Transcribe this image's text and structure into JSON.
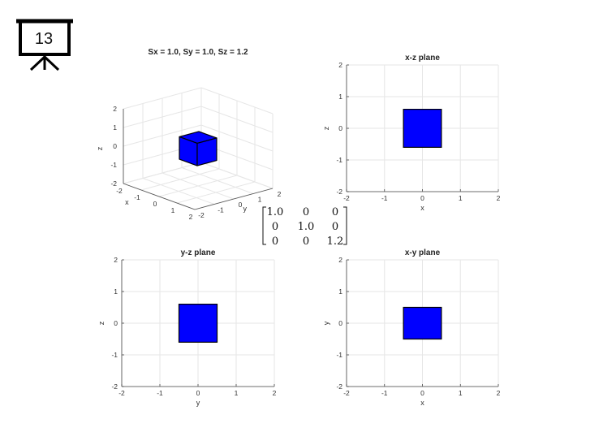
{
  "slide": {
    "number": "13"
  },
  "colors": {
    "cube_fill": "#0000ff",
    "cube_edge": "#000000",
    "highlight": "#cc0000",
    "grid": "#e6e6e6"
  },
  "scale_matrix": {
    "rows": [
      [
        "1.0",
        "0",
        "0"
      ],
      [
        "0",
        "1.0",
        "0"
      ],
      [
        "0",
        "0",
        "1.2"
      ]
    ],
    "highlight_cell": [
      2,
      2
    ]
  },
  "chart_data": [
    {
      "type": "3d-surface",
      "title": "Sx = 1.0, Sy = 1.0, Sz = 1.2",
      "xlabel": "x",
      "ylabel": "y",
      "zlabel": "z",
      "xlim": [
        -2,
        2
      ],
      "ylim": [
        -2,
        2
      ],
      "zlim": [
        -2,
        2
      ],
      "xticks": [
        "-2",
        "-1",
        "0",
        "1",
        "2"
      ],
      "yticks": [
        "-2",
        "-1",
        "0",
        "1",
        "2"
      ],
      "zticks": [
        "-2",
        "-1",
        "0",
        "1",
        "2"
      ],
      "cube": {
        "x": [
          -0.5,
          0.5
        ],
        "y": [
          -0.5,
          0.5
        ],
        "z": [
          -0.6,
          0.6
        ]
      }
    },
    {
      "type": "rect",
      "title": "x-z plane",
      "xlabel": "x",
      "ylabel": "z",
      "xlim": [
        -2,
        2
      ],
      "ylim": [
        -2,
        2
      ],
      "xticks": [
        "-2",
        "-1",
        "0",
        "1",
        "2"
      ],
      "yticks": [
        "-2",
        "-1",
        "0",
        "1",
        "2"
      ],
      "rect": {
        "x": [
          -0.5,
          0.5
        ],
        "y": [
          -0.6,
          0.6
        ]
      }
    },
    {
      "type": "rect",
      "title": "y-z plane",
      "xlabel": "y",
      "ylabel": "z",
      "xlim": [
        -2,
        2
      ],
      "ylim": [
        -2,
        2
      ],
      "xticks": [
        "-2",
        "-1",
        "0",
        "1",
        "2"
      ],
      "yticks": [
        "-2",
        "-1",
        "0",
        "1",
        "2"
      ],
      "rect": {
        "x": [
          -0.5,
          0.5
        ],
        "y": [
          -0.6,
          0.6
        ]
      }
    },
    {
      "type": "rect",
      "title": "x-y plane",
      "xlabel": "x",
      "ylabel": "y",
      "xlim": [
        -2,
        2
      ],
      "ylim": [
        -2,
        2
      ],
      "xticks": [
        "-2",
        "-1",
        "0",
        "1",
        "2"
      ],
      "yticks": [
        "-2",
        "-1",
        "0",
        "1",
        "2"
      ],
      "rect": {
        "x": [
          -0.5,
          0.5
        ],
        "y": [
          -0.5,
          0.5
        ]
      }
    }
  ]
}
